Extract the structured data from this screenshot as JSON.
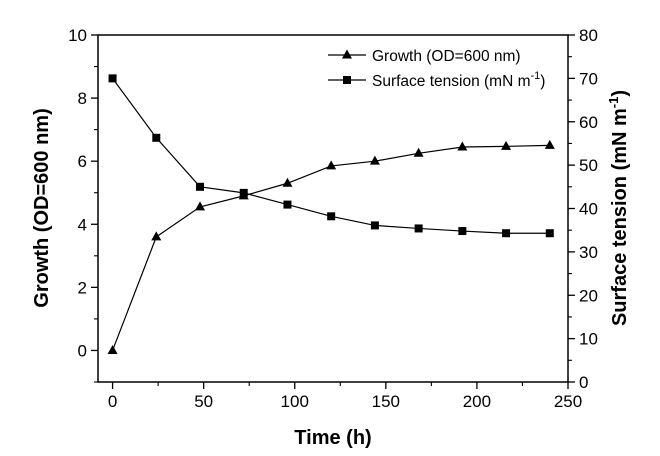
{
  "chart_data": {
    "type": "line",
    "xlabel": "Time (h)",
    "ylabel_left": "Growth (OD=600 nm)",
    "ylabel_right": "Surface tension (mN m",
    "ylabel_right_sup": "-1",
    "ylabel_right_close": ")",
    "xlim": [
      -8,
      250
    ],
    "ylim_left": [
      -1,
      10
    ],
    "ylim_right": [
      0,
      80
    ],
    "x_ticks": [
      0,
      50,
      100,
      150,
      200,
      250
    ],
    "y_left_ticks": [
      0,
      2,
      4,
      6,
      8,
      10
    ],
    "y_right_ticks": [
      0,
      10,
      20,
      30,
      40,
      50,
      60,
      70,
      80
    ],
    "grid": false,
    "legend_position": "top-right",
    "series": [
      {
        "name": "Growth (OD=600 nm)",
        "axis": "left",
        "marker": "triangle",
        "x": [
          0,
          24,
          48,
          72,
          96,
          120,
          144,
          168,
          192,
          216,
          240
        ],
        "values": [
          0.0,
          3.6,
          4.55,
          4.9,
          5.3,
          5.85,
          6.0,
          6.25,
          6.45,
          6.47,
          6.5
        ]
      },
      {
        "name": "Surface tension (mN m",
        "name_sup": "-1",
        "name_close": ")",
        "axis": "right",
        "marker": "square",
        "x": [
          0,
          24,
          48,
          72,
          96,
          120,
          144,
          168,
          192,
          216,
          240
        ],
        "values": [
          70.0,
          56.3,
          45.0,
          43.6,
          40.9,
          38.2,
          36.1,
          35.4,
          34.8,
          34.3,
          34.3
        ]
      }
    ]
  }
}
